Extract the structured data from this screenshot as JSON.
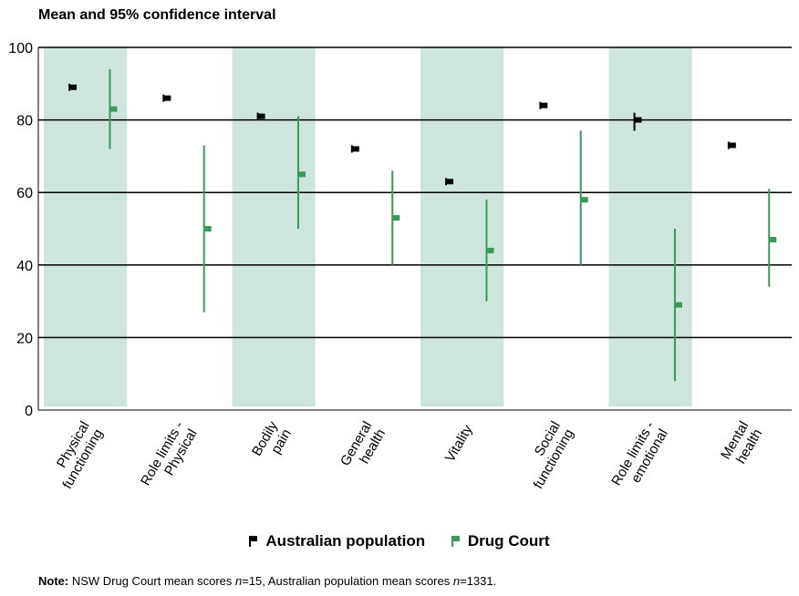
{
  "chart_data": {
    "type": "interval",
    "title": "Mean and 95% confidence interval",
    "ylim": [
      0,
      100
    ],
    "yticks": [
      0,
      20,
      40,
      60,
      80,
      100
    ],
    "grid": true,
    "categories": [
      "Physical functioning",
      "Role limits - Physical",
      "Bodily pain",
      "General health",
      "Vitality",
      "Social functioning",
      "Role limits - emotional",
      "Mental health"
    ],
    "shaded_bands": [
      0,
      2,
      4,
      6
    ],
    "series": [
      {
        "name": "Australian population",
        "color": "#000000",
        "means": [
          89,
          86,
          81,
          72,
          63,
          84,
          80,
          73
        ],
        "lower": [
          88,
          85,
          80,
          71,
          62,
          83,
          77,
          72
        ],
        "upper": [
          90,
          87,
          82,
          73,
          64,
          85,
          82,
          74
        ]
      },
      {
        "name": "Drug Court",
        "color": "#3a9a5a",
        "means": [
          83,
          50,
          65,
          53,
          44,
          58,
          29,
          47
        ],
        "lower": [
          72,
          27,
          50,
          40,
          30,
          40,
          8,
          34
        ],
        "upper": [
          94,
          73,
          81,
          66,
          58,
          77,
          50,
          61
        ]
      }
    ],
    "band_color": "#cde5dc",
    "legend_position": "bottom"
  },
  "legend": {
    "item1": "Australian population",
    "item2": "Drug Court"
  },
  "note": {
    "label": "Note:",
    "text_a": " NSW Drug Court mean scores ",
    "n1": "n",
    "text_b": "=15, Australian population mean scores ",
    "n2": "n",
    "text_c": "=1331."
  }
}
